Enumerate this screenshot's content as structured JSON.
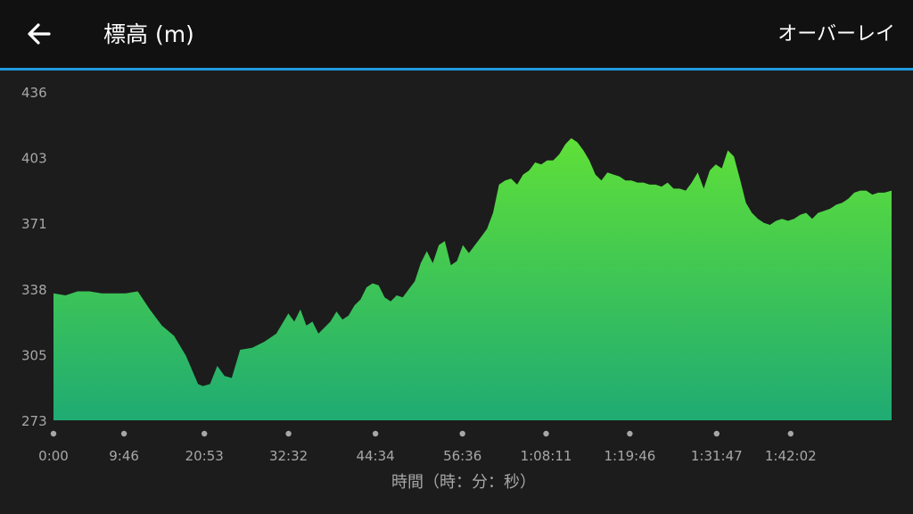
{
  "header": {
    "title": "標高 (m)",
    "overlay_label": "オーバーレイ",
    "back_icon": "arrow-left-icon"
  },
  "colors": {
    "accent": "#1e9be0",
    "area_top": "#5fe038",
    "area_bottom": "#1fab73",
    "background": "#1c1c1c",
    "topbar": "#111111"
  },
  "chart_data": {
    "type": "area",
    "title": "標高 (m)",
    "xlabel": "時間（時：分：秒）",
    "ylabel": "",
    "ylim": [
      273,
      436
    ],
    "yticks": [
      "436",
      "403",
      "371",
      "338",
      "305",
      "273"
    ],
    "xlim_seconds": [
      0,
      6960
    ],
    "xticks": [
      {
        "label": "0:00",
        "seconds": 0
      },
      {
        "label": "9:46",
        "seconds": 586
      },
      {
        "label": "20:53",
        "seconds": 1253
      },
      {
        "label": "32:32",
        "seconds": 1952
      },
      {
        "label": "44:34",
        "seconds": 2674
      },
      {
        "label": "56:36",
        "seconds": 3396
      },
      {
        "label": "1:08:11",
        "seconds": 4091
      },
      {
        "label": "1:19:46",
        "seconds": 4786
      },
      {
        "label": "1:31:47",
        "seconds": 5507
      },
      {
        "label": "1:42:02",
        "seconds": 6122
      }
    ],
    "x": [
      0,
      100,
      200,
      300,
      400,
      500,
      600,
      700,
      800,
      900,
      1000,
      1100,
      1200,
      1240,
      1300,
      1360,
      1420,
      1480,
      1550,
      1650,
      1750,
      1850,
      1950,
      2000,
      2050,
      2100,
      2150,
      2200,
      2300,
      2350,
      2400,
      2450,
      2500,
      2550,
      2600,
      2650,
      2700,
      2750,
      2800,
      2850,
      2900,
      2950,
      3000,
      3050,
      3100,
      3150,
      3200,
      3250,
      3300,
      3350,
      3400,
      3450,
      3500,
      3550,
      3600,
      3650,
      3700,
      3750,
      3800,
      3850,
      3900,
      3950,
      4000,
      4050,
      4100,
      4150,
      4200,
      4250,
      4300,
      4350,
      4400,
      4450,
      4500,
      4550,
      4600,
      4650,
      4700,
      4750,
      4800,
      4850,
      4900,
      4950,
      5000,
      5050,
      5100,
      5150,
      5200,
      5250,
      5300,
      5350,
      5400,
      5450,
      5500,
      5550,
      5600,
      5650,
      5700,
      5750,
      5800,
      5850,
      5900,
      5950,
      6000,
      6050,
      6100,
      6150,
      6200,
      6250,
      6300,
      6350,
      6400,
      6450,
      6500,
      6550,
      6600,
      6650,
      6700,
      6750,
      6800,
      6850,
      6900,
      6960
    ],
    "values": [
      336,
      335,
      337,
      337,
      336,
      336,
      336,
      337,
      328,
      320,
      315,
      305,
      291,
      290,
      291,
      300,
      295,
      294,
      308,
      309,
      312,
      316,
      326,
      322,
      328,
      320,
      322,
      316,
      322,
      327,
      323,
      325,
      330,
      333,
      339,
      341,
      340,
      334,
      332,
      335,
      334,
      338,
      342,
      351,
      357,
      351,
      360,
      362,
      350,
      352,
      360,
      356,
      360,
      364,
      368,
      376,
      390,
      392,
      393,
      390,
      395,
      397,
      401,
      400,
      402,
      402,
      405,
      410,
      413,
      411,
      407,
      402,
      395,
      392,
      396,
      395,
      394,
      392,
      392,
      391,
      391,
      390,
      390,
      389,
      391,
      388,
      388,
      387,
      391,
      396,
      388,
      397,
      400,
      398,
      407,
      404,
      393,
      381,
      376,
      373,
      371,
      370,
      372,
      373,
      372,
      373,
      375,
      376,
      373,
      376,
      377,
      378,
      380,
      381,
      383,
      386,
      387,
      387,
      385,
      386,
      386,
      387
    ]
  }
}
